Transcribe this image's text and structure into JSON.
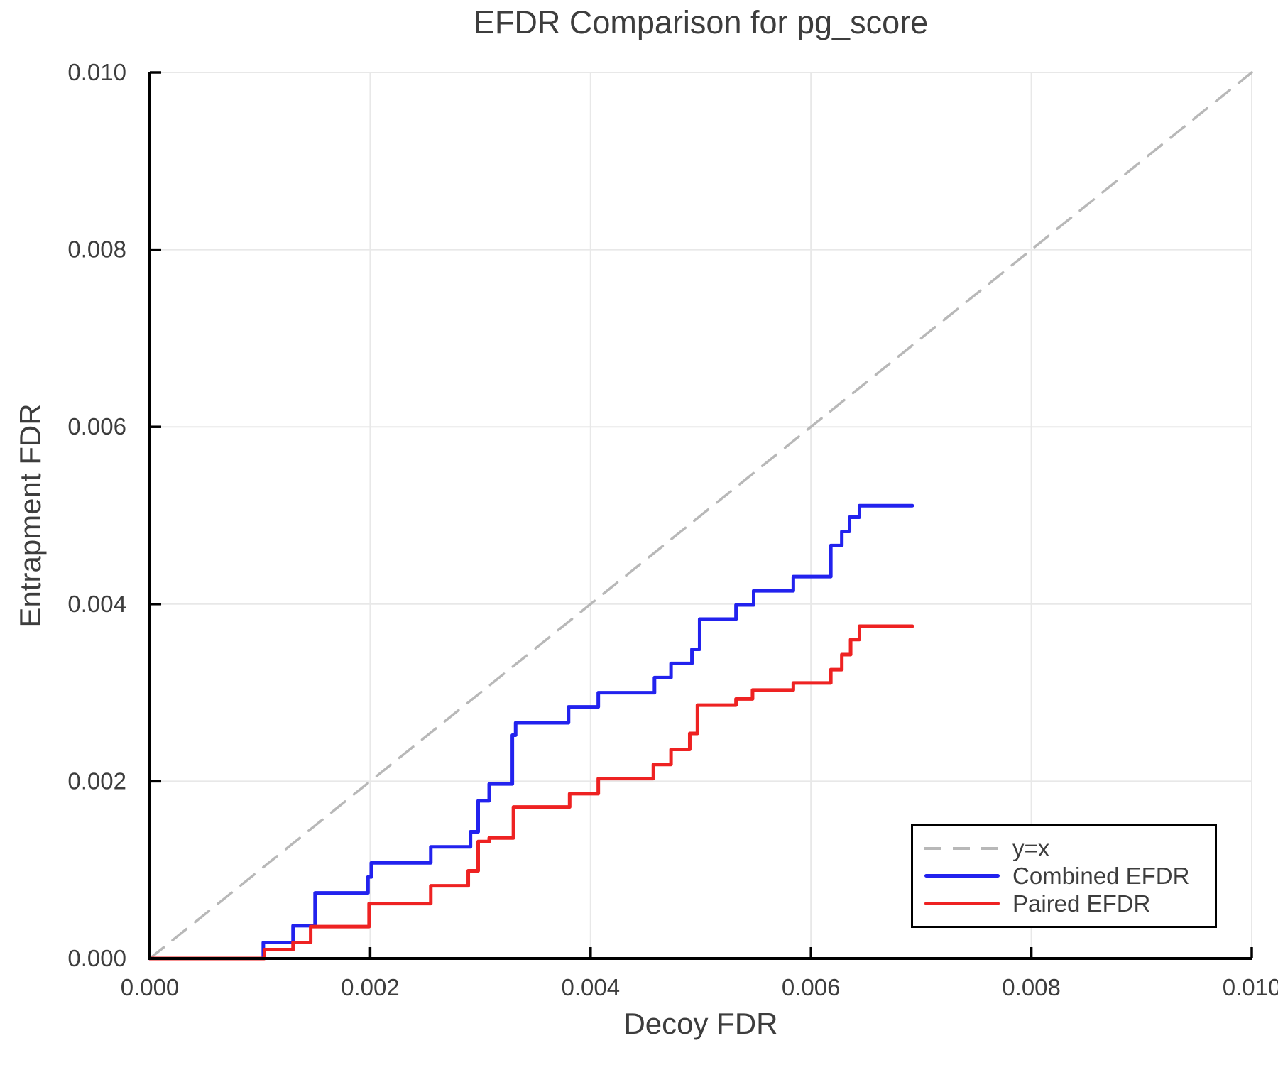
{
  "chart_data": {
    "type": "line",
    "title": "EFDR Comparison for pg_score",
    "xlabel": "Decoy FDR",
    "ylabel": "Entrapment FDR",
    "xlim": [
      0.0,
      0.01
    ],
    "ylim": [
      0.0,
      0.01
    ],
    "x_tick_labels": [
      "0.000",
      "0.002",
      "0.004",
      "0.006",
      "0.008",
      "0.010"
    ],
    "y_tick_labels": [
      "0.000",
      "0.002",
      "0.004",
      "0.006",
      "0.008",
      "0.010"
    ],
    "grid": true,
    "grid_color": "#e8e8e8",
    "spine_color": "#000000",
    "tick_label_color": "#3d3d3d",
    "legend_position": "lower right",
    "series": [
      {
        "name": "y=x",
        "style": "dashed",
        "drawstyle": "line",
        "color": "#b8b8b8",
        "width": 3.5,
        "points": [
          [
            0.0,
            0.0
          ],
          [
            0.01,
            0.01
          ]
        ]
      },
      {
        "name": "Combined EFDR",
        "style": "solid",
        "drawstyle": "steps-post",
        "color": "#2222ee",
        "width": 5,
        "points": [
          [
            0.0,
            0.0
          ],
          [
            0.00103,
            0.00018
          ],
          [
            0.0013,
            0.00037
          ],
          [
            0.0015,
            0.00074
          ],
          [
            0.00198,
            0.00092
          ],
          [
            0.00201,
            0.00108
          ],
          [
            0.00255,
            0.00126
          ],
          [
            0.00291,
            0.00143
          ],
          [
            0.00298,
            0.00178
          ],
          [
            0.00308,
            0.00197
          ],
          [
            0.00329,
            0.00252
          ],
          [
            0.00332,
            0.00266
          ],
          [
            0.0038,
            0.00284
          ],
          [
            0.00407,
            0.003
          ],
          [
            0.00458,
            0.00317
          ],
          [
            0.00473,
            0.00333
          ],
          [
            0.00492,
            0.00349
          ],
          [
            0.00499,
            0.00383
          ],
          [
            0.00532,
            0.00399
          ],
          [
            0.00548,
            0.00415
          ],
          [
            0.00584,
            0.00431
          ],
          [
            0.00618,
            0.00466
          ],
          [
            0.00628,
            0.00482
          ],
          [
            0.00635,
            0.00498
          ],
          [
            0.00644,
            0.00511
          ],
          [
            0.00692,
            0.00511
          ]
        ]
      },
      {
        "name": "Paired EFDR",
        "style": "solid",
        "drawstyle": "steps-post",
        "color": "#ee2222",
        "width": 5,
        "points": [
          [
            0.0,
            0.0
          ],
          [
            0.00104,
            0.0001
          ],
          [
            0.0013,
            0.00018
          ],
          [
            0.00146,
            0.00036
          ],
          [
            0.00199,
            0.00062
          ],
          [
            0.00255,
            0.00082
          ],
          [
            0.00289,
            0.00099
          ],
          [
            0.00298,
            0.00132
          ],
          [
            0.00308,
            0.00136
          ],
          [
            0.0033,
            0.00171
          ],
          [
            0.00381,
            0.00186
          ],
          [
            0.00407,
            0.00203
          ],
          [
            0.00457,
            0.00219
          ],
          [
            0.00473,
            0.00236
          ],
          [
            0.0049,
            0.00254
          ],
          [
            0.00497,
            0.00286
          ],
          [
            0.00532,
            0.00293
          ],
          [
            0.00547,
            0.00303
          ],
          [
            0.00584,
            0.00311
          ],
          [
            0.00618,
            0.00326
          ],
          [
            0.00628,
            0.00343
          ],
          [
            0.00636,
            0.0036
          ],
          [
            0.00644,
            0.00375
          ],
          [
            0.00692,
            0.00375
          ]
        ]
      }
    ]
  }
}
